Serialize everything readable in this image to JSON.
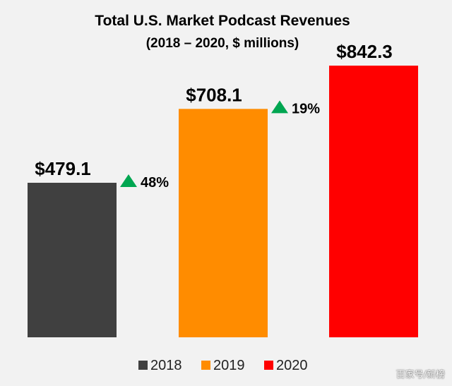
{
  "chart_data": {
    "type": "bar",
    "title": "Total U.S. Market Podcast Revenues",
    "subtitle": "(2018 – 2020, $ millions)",
    "categories": [
      "2018",
      "2019",
      "2020"
    ],
    "values": [
      479.1,
      708.1,
      842.3
    ],
    "value_labels": [
      "$479.1",
      "$708.1",
      "$842.3"
    ],
    "growth": [
      {
        "label": "48%",
        "between": [
          "2018",
          "2019"
        ]
      },
      {
        "label": "19%",
        "between": [
          "2019",
          "2020"
        ]
      }
    ],
    "colors": [
      "#404040",
      "#ff8c00",
      "#ff0000"
    ],
    "growth_color": "#00a651",
    "legend": {
      "position": "bottom",
      "entries": [
        {
          "label": "2018",
          "color": "#404040"
        },
        {
          "label": "2019",
          "color": "#ff8c00"
        },
        {
          "label": "2020",
          "color": "#ff0000"
        }
      ]
    },
    "ylim": [
      0,
      842.3
    ],
    "xlabel": "",
    "ylabel": "",
    "grid": false
  },
  "watermark": "百家号/新榜"
}
